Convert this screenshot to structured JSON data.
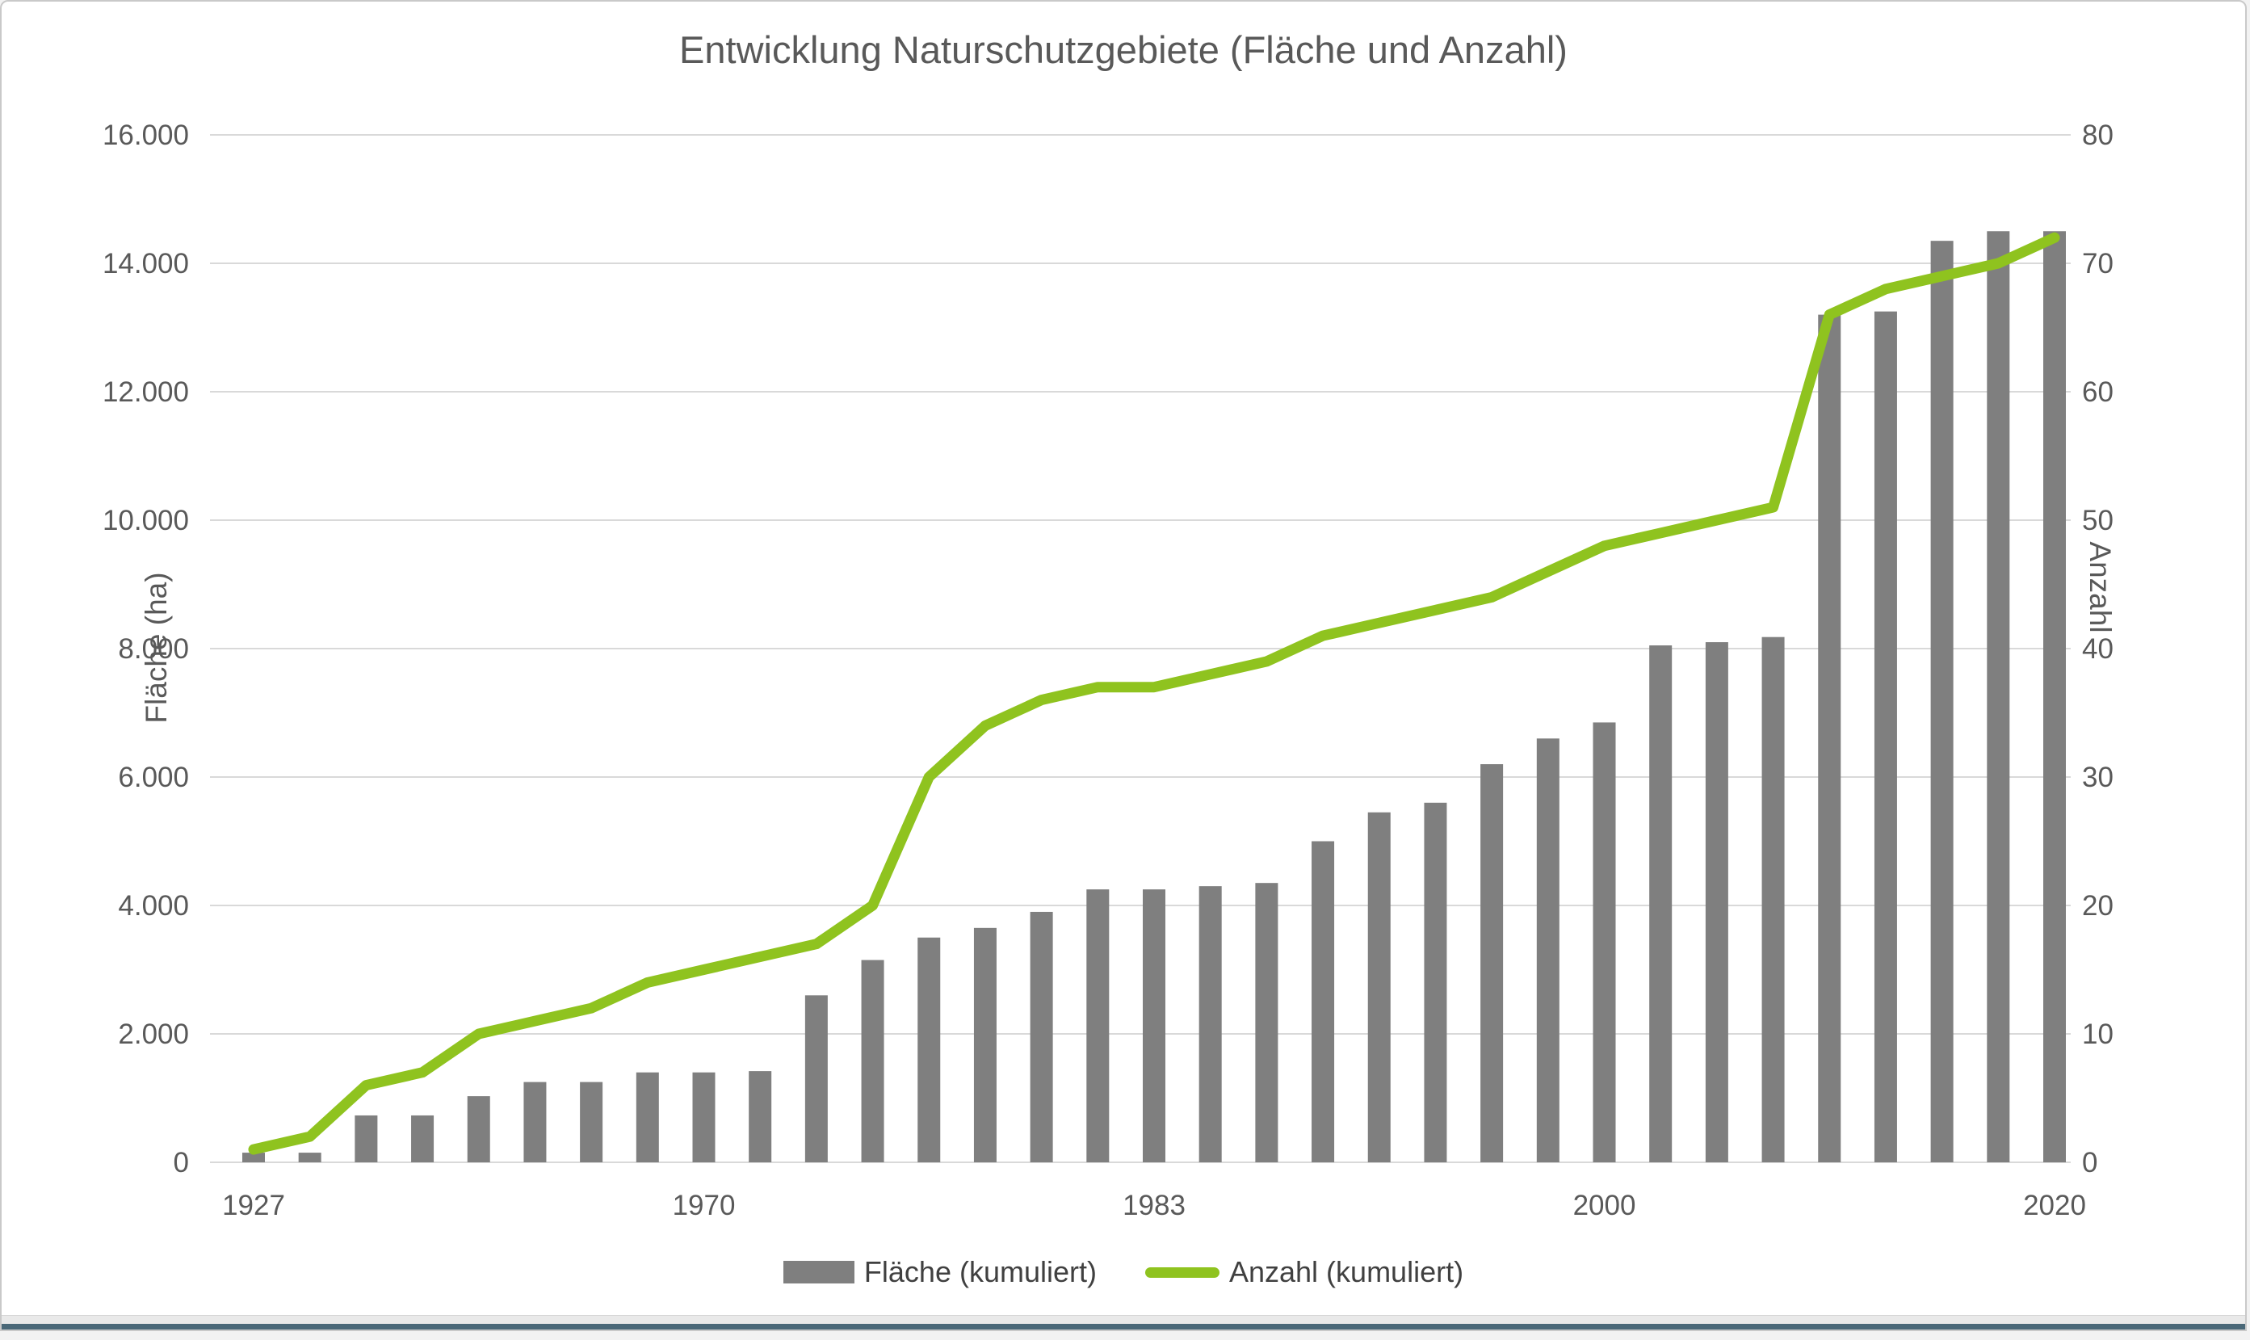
{
  "window": {
    "background": "#ffffff",
    "border_color": "#c9c9c9",
    "bottom_bar_color": "#4a6878"
  },
  "chart_data": {
    "type": "bar",
    "subtype": "bar+line dual axis",
    "title": "Entwicklung Naturschutzgebiete (Fläche und Anzahl)",
    "grid": true,
    "legend_position": "bottom",
    "categories_note": "33 Datenpunkte, beschriftet nur an 5 Positionen",
    "x_tick_labels": [
      {
        "index": 0,
        "label": "1927"
      },
      {
        "index": 8,
        "label": "1970"
      },
      {
        "index": 16,
        "label": "1983"
      },
      {
        "index": 24,
        "label": "2000"
      },
      {
        "index": 32,
        "label": "2020"
      }
    ],
    "left_axis": {
      "title": "Fläche (ha)",
      "min": 0,
      "max": 16000,
      "step": 2000,
      "tick_labels": [
        "16.000",
        "14.000",
        "12.000",
        "10.000",
        "8.000",
        "6.000",
        "4.000",
        "2.000",
        "0"
      ]
    },
    "right_axis": {
      "title": "Anzahl",
      "min": 0,
      "max": 80,
      "step": 10,
      "tick_labels": [
        "80",
        "70",
        "60",
        "50",
        "40",
        "30",
        "20",
        "10",
        "0"
      ]
    },
    "series": [
      {
        "name": "Fläche (kumuliert)",
        "type": "bar",
        "axis": "left",
        "color": "#7f7f7f",
        "values": [
          150,
          150,
          730,
          730,
          1030,
          1250,
          1250,
          1400,
          1400,
          1420,
          2600,
          3150,
          3500,
          3650,
          3900,
          4250,
          4250,
          4300,
          4350,
          5000,
          5450,
          5600,
          6200,
          6600,
          6850,
          8050,
          8100,
          8180,
          13200,
          13250,
          14350,
          14500,
          14500
        ]
      },
      {
        "name": "Anzahl (kumuliert)",
        "type": "line",
        "axis": "right",
        "color": "#8fc31f",
        "values": [
          1,
          2,
          6,
          7,
          10,
          11,
          12,
          14,
          15,
          16,
          17,
          20,
          30,
          34,
          36,
          37,
          37,
          38,
          39,
          41,
          42,
          43,
          44,
          46,
          48,
          49,
          50,
          51,
          66,
          68,
          69,
          70,
          72
        ]
      }
    ],
    "legend": {
      "items": [
        {
          "label": "Fläche (kumuliert)",
          "swatch": "bar",
          "color": "#7f7f7f"
        },
        {
          "label": "Anzahl (kumuliert)",
          "swatch": "line",
          "color": "#8fc31f"
        }
      ]
    },
    "colors": {
      "grid": "#d9d9d9",
      "axis_line": "#d9d9d9",
      "text": "#595959"
    }
  }
}
